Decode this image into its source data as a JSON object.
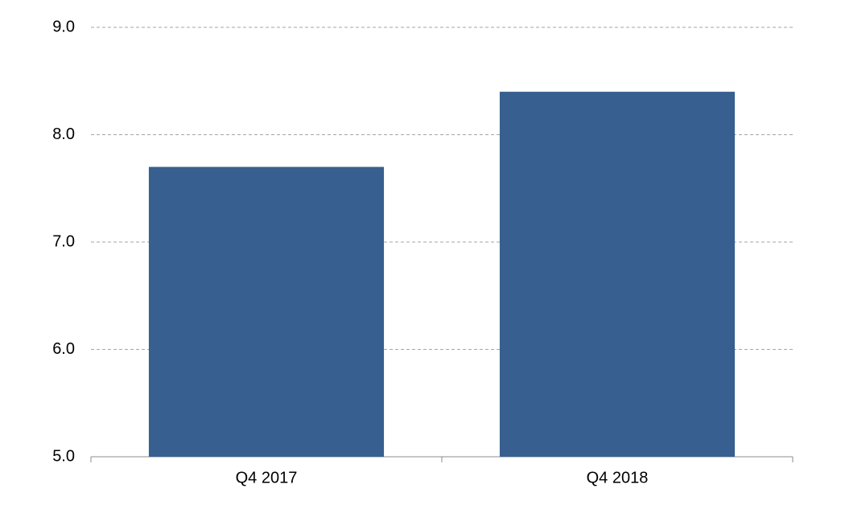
{
  "chart_data": {
    "type": "bar",
    "categories": [
      "Q4 2017",
      "Q4 2018"
    ],
    "values": [
      7.7,
      8.4
    ],
    "color": "#375f8f",
    "ylim": [
      5,
      9
    ],
    "yticks": [
      {
        "value": 5,
        "label": "5.0"
      },
      {
        "value": 6,
        "label": "6.0"
      },
      {
        "value": 7,
        "label": "7.0"
      },
      {
        "value": 8,
        "label": "8.0"
      },
      {
        "value": 9,
        "label": "9.0"
      }
    ],
    "grid": true
  }
}
